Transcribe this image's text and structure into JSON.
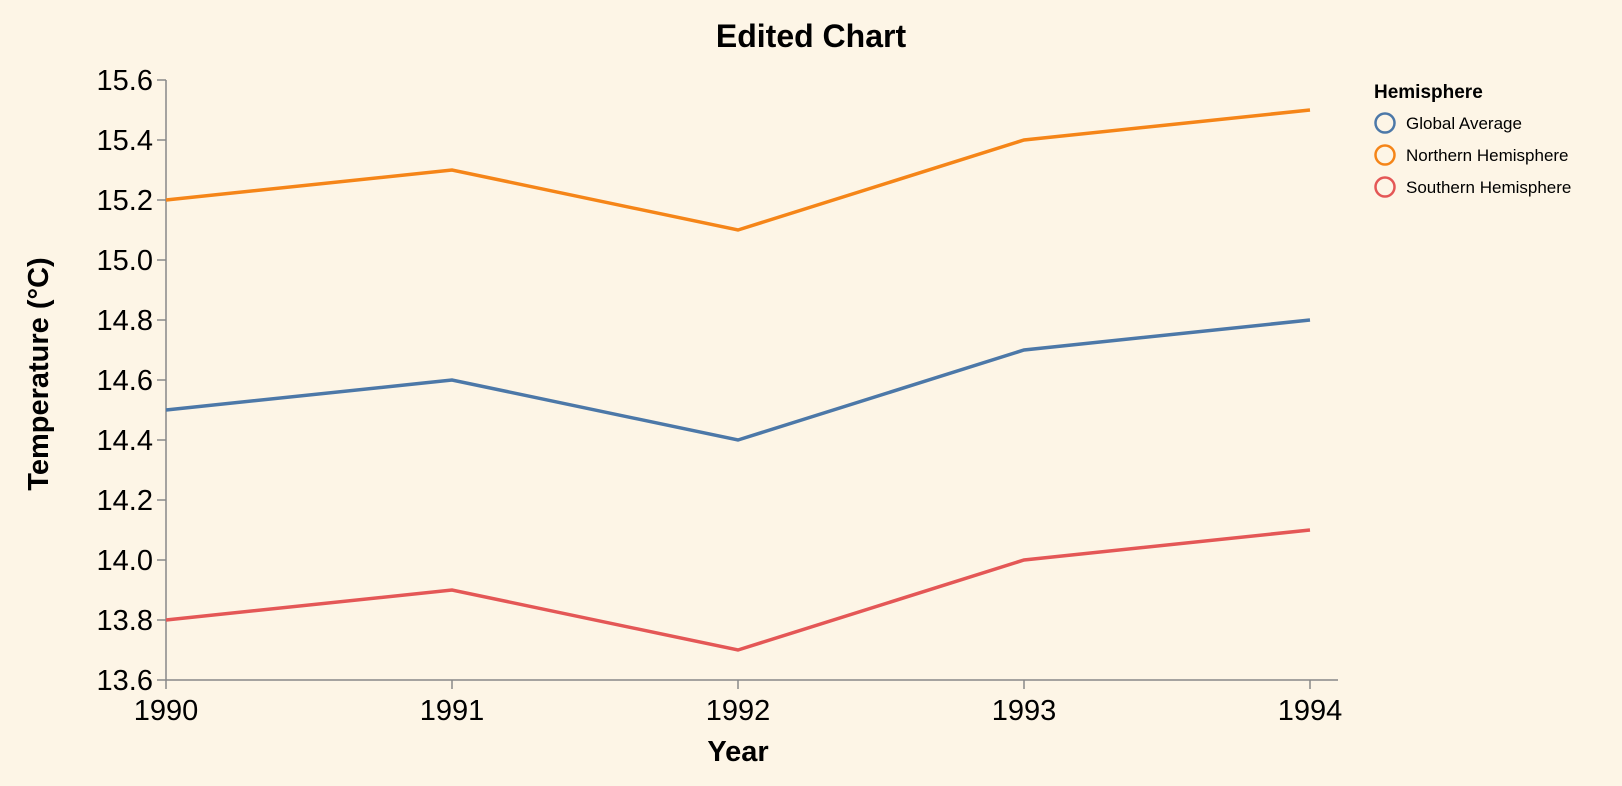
{
  "chart_data": {
    "type": "line",
    "title": "Edited Chart",
    "xlabel": "Year",
    "ylabel": "Temperature (°C)",
    "x": [
      1990,
      1991,
      1992,
      1993,
      1994
    ],
    "ylim": [
      13.6,
      15.6
    ],
    "yticks": [
      "13.6",
      "13.8",
      "14.0",
      "14.2",
      "14.4",
      "14.6",
      "14.8",
      "15.0",
      "15.2",
      "15.4",
      "15.6"
    ],
    "grid": false,
    "legend": {
      "title": "Hemisphere",
      "placement": "top-right"
    },
    "series": [
      {
        "name": "Global Average",
        "color": "#4c78a8",
        "values": [
          14.5,
          14.6,
          14.4,
          14.7,
          14.8
        ]
      },
      {
        "name": "Northern Hemisphere",
        "color": "#f58518",
        "values": [
          15.2,
          15.3,
          15.1,
          15.4,
          15.5
        ]
      },
      {
        "name": "Southern Hemisphere",
        "color": "#e45756",
        "values": [
          13.8,
          13.9,
          13.7,
          14.0,
          14.1
        ]
      }
    ]
  }
}
